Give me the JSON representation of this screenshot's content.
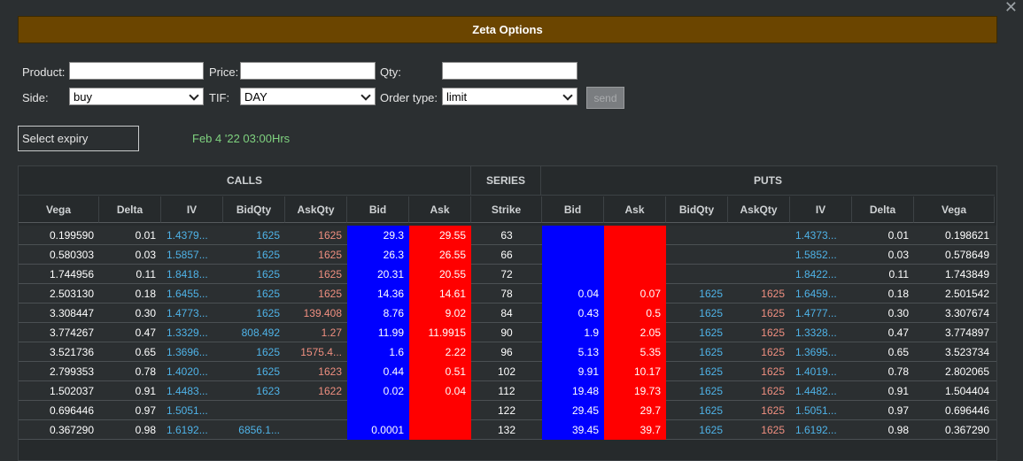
{
  "window": {
    "title": "Zeta Options",
    "close_glyph": "✕"
  },
  "order_form": {
    "product_label": "Product:",
    "product_value": "",
    "price_label": "Price:",
    "price_value": "",
    "qty_label": "Qty:",
    "qty_value": "",
    "side_label": "Side:",
    "side_value": "buy",
    "tif_label": "TIF:",
    "tif_value": "DAY",
    "order_type_label": "Order type:",
    "order_type_value": "limit",
    "send_label": "send"
  },
  "expiry": {
    "select_label": "Select expiry",
    "date_label": "Feb 4 '22 03:00Hrs"
  },
  "table": {
    "groups": {
      "calls": "CALLS",
      "series": "SERIES",
      "puts": "PUTS"
    },
    "headers": [
      "Vega",
      "Delta",
      "IV",
      "BidQty",
      "AskQty",
      "Bid",
      "Ask",
      "Strike",
      "Bid",
      "Ask",
      "BidQty",
      "AskQty",
      "IV",
      "Delta",
      "Vega"
    ],
    "rows": [
      [
        "0.199590",
        "0.01",
        "1.4379...",
        "1625",
        "1625",
        "29.3",
        "29.55",
        "63",
        "",
        "",
        "",
        "",
        "1.4373...",
        "0.01",
        "0.198621"
      ],
      [
        "0.580303",
        "0.03",
        "1.5857...",
        "1625",
        "1625",
        "26.3",
        "26.55",
        "66",
        "",
        "",
        "",
        "",
        "1.5852...",
        "0.03",
        "0.578649"
      ],
      [
        "1.744956",
        "0.11",
        "1.8418...",
        "1625",
        "1625",
        "20.31",
        "20.55",
        "72",
        "",
        "",
        "",
        "",
        "1.8422...",
        "0.11",
        "1.743849"
      ],
      [
        "2.503130",
        "0.18",
        "1.6455...",
        "1625",
        "1625",
        "14.36",
        "14.61",
        "78",
        "0.04",
        "0.07",
        "1625",
        "1625",
        "1.6459...",
        "0.18",
        "2.501542"
      ],
      [
        "3.308447",
        "0.30",
        "1.4773...",
        "1625",
        "139.408",
        "8.76",
        "9.02",
        "84",
        "0.43",
        "0.5",
        "1625",
        "1625",
        "1.4777...",
        "0.30",
        "3.307674"
      ],
      [
        "3.774267",
        "0.47",
        "1.3329...",
        "808.492",
        "1.27",
        "11.99",
        "11.9915",
        "90",
        "1.9",
        "2.05",
        "1625",
        "1625",
        "1.3328...",
        "0.47",
        "3.774897"
      ],
      [
        "3.521736",
        "0.65",
        "1.3696...",
        "1625",
        "1575.4...",
        "1.6",
        "2.22",
        "96",
        "5.13",
        "5.35",
        "1625",
        "1625",
        "1.3695...",
        "0.65",
        "3.523734"
      ],
      [
        "2.799353",
        "0.78",
        "1.4020...",
        "1625",
        "1623",
        "0.44",
        "0.51",
        "102",
        "9.91",
        "10.17",
        "1625",
        "1625",
        "1.4019...",
        "0.78",
        "2.802065"
      ],
      [
        "1.502037",
        "0.91",
        "1.4483...",
        "1623",
        "1622",
        "0.02",
        "0.04",
        "112",
        "19.48",
        "19.73",
        "1625",
        "1625",
        "1.4482...",
        "0.91",
        "1.504404"
      ],
      [
        "0.696446",
        "0.97",
        "1.5051...",
        "",
        "",
        "",
        "",
        "122",
        "29.45",
        "29.7",
        "1625",
        "1625",
        "1.5051...",
        "0.97",
        "0.696446"
      ],
      [
        "0.367290",
        "0.98",
        "1.6192...",
        "6856.1...",
        "",
        "0.0001",
        "",
        "132",
        "39.45",
        "39.7",
        "1625",
        "1625",
        "1.6192...",
        "0.98",
        "0.367290"
      ]
    ]
  }
}
